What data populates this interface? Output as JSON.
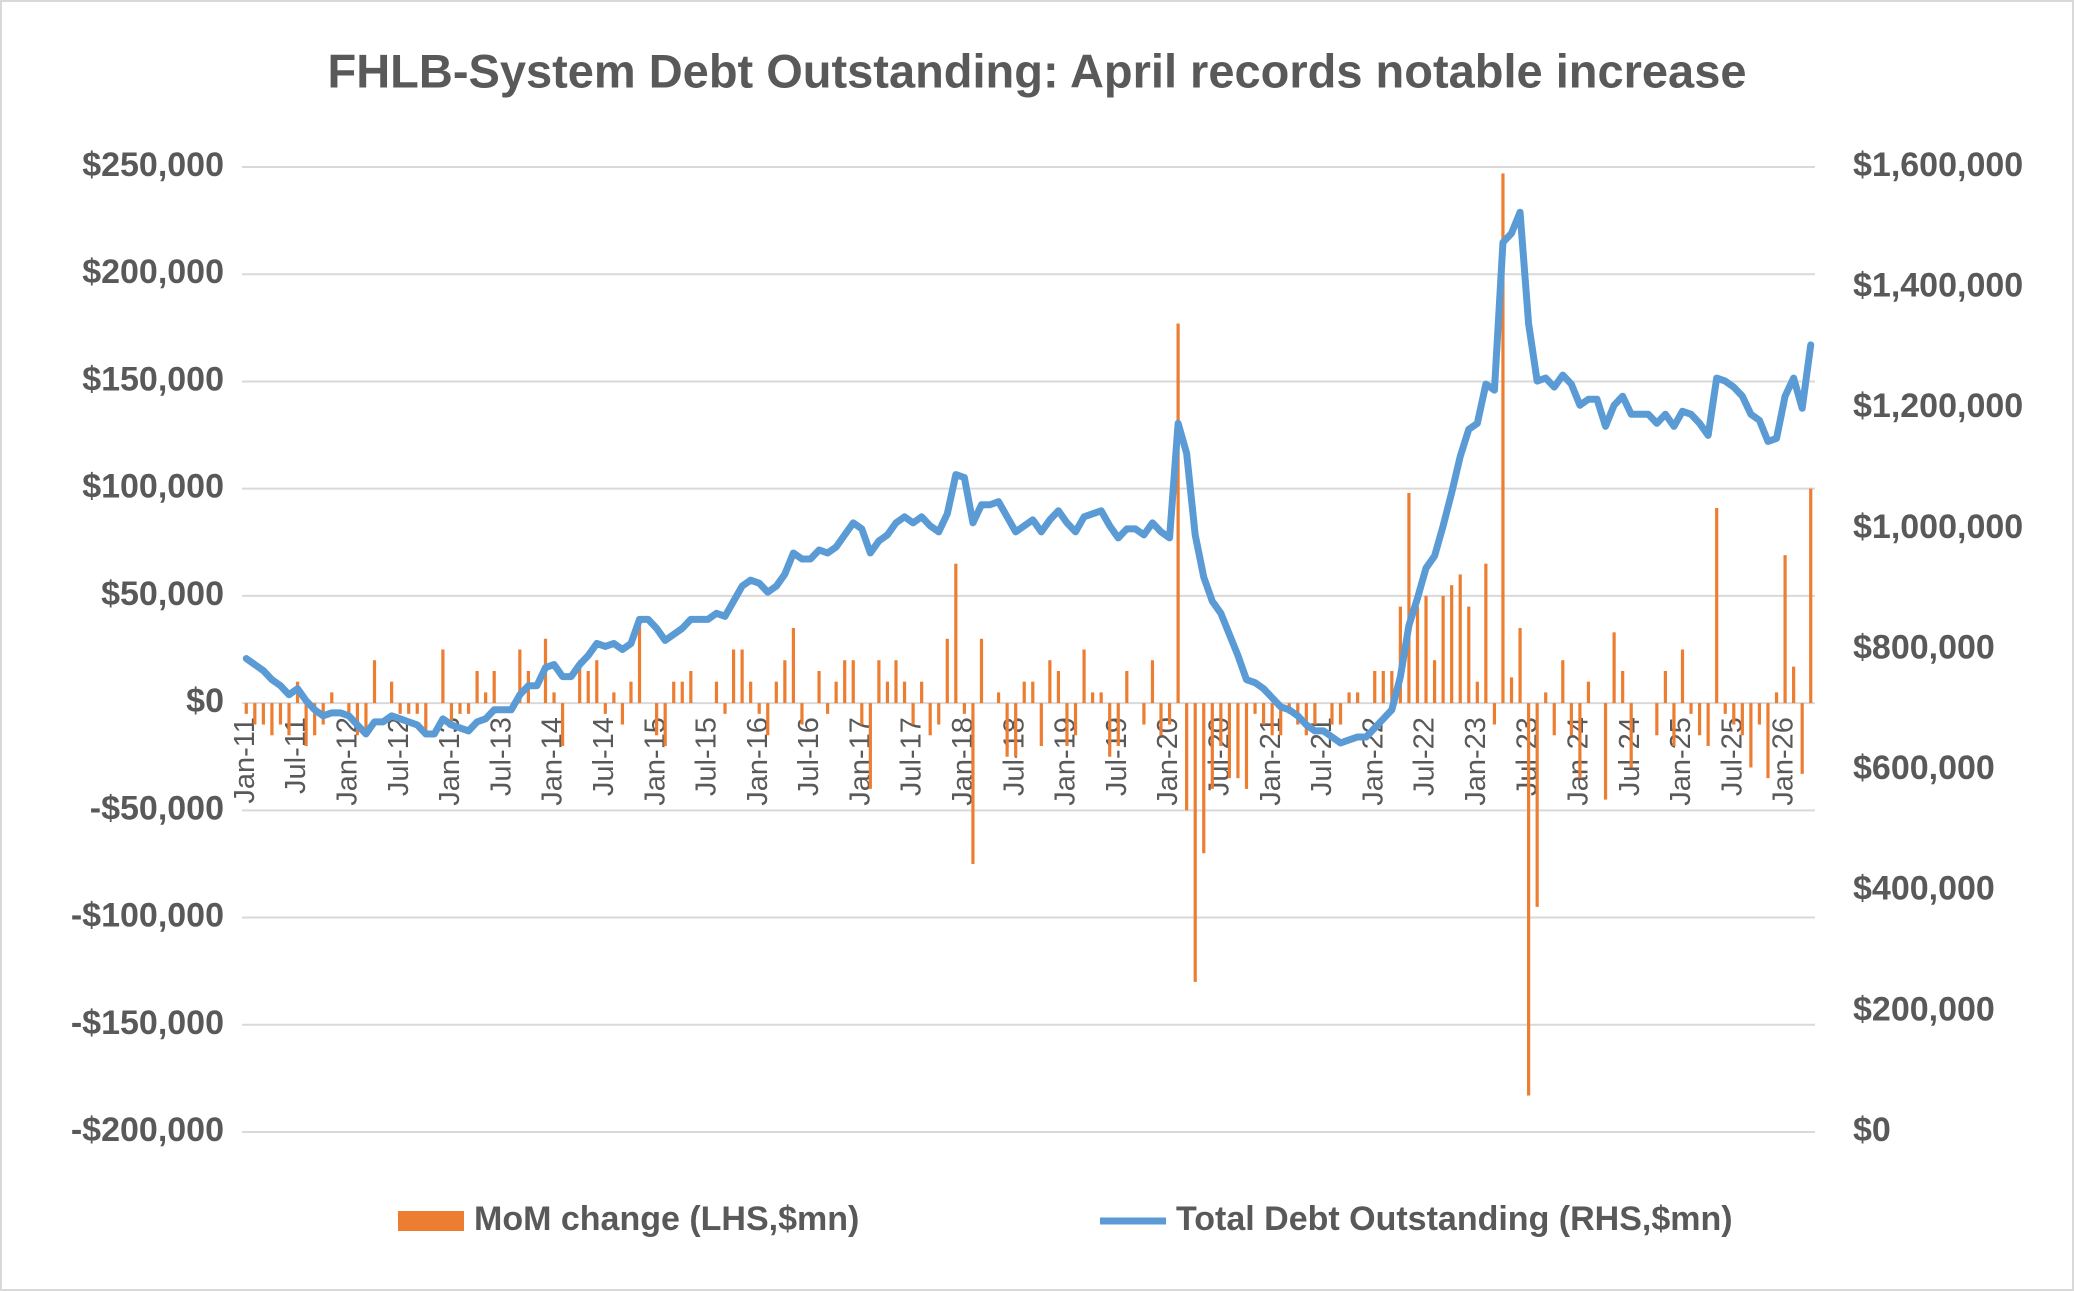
{
  "chart_data": {
    "type": "combo",
    "title": "FHLB-System Debt Outstanding: April records notable increase",
    "categories": [
      "Jan-11",
      null,
      null,
      null,
      null,
      null,
      "Jul-11",
      null,
      null,
      null,
      null,
      null,
      "Jan-12",
      null,
      null,
      null,
      null,
      null,
      "Jul-12",
      null,
      null,
      null,
      null,
      null,
      "Jan-13",
      null,
      null,
      null,
      null,
      null,
      "Jul-13",
      null,
      null,
      null,
      null,
      null,
      "Jan-14",
      null,
      null,
      null,
      null,
      null,
      "Jul-14",
      null,
      null,
      null,
      null,
      null,
      "Jan-15",
      null,
      null,
      null,
      null,
      null,
      "Jul-15",
      null,
      null,
      null,
      null,
      null,
      "Jan-16",
      null,
      null,
      null,
      null,
      null,
      "Jul-16",
      null,
      null,
      null,
      null,
      null,
      "Jan-17",
      null,
      null,
      null,
      null,
      null,
      "Jul-17",
      null,
      null,
      null,
      null,
      null,
      "Jan-18",
      null,
      null,
      null,
      null,
      null,
      "Jul-18",
      null,
      null,
      null,
      null,
      null,
      "Jan-19",
      null,
      null,
      null,
      null,
      null,
      "Jul-19",
      null,
      null,
      null,
      null,
      null,
      "Jan-20",
      null,
      null,
      null,
      null,
      null,
      "Jul-20",
      null,
      null,
      null,
      null,
      null,
      "Jan-21",
      null,
      null,
      null,
      null,
      null,
      "Jul-21",
      null,
      null,
      null,
      null,
      null,
      "Jan-22",
      null,
      null,
      null,
      null,
      null,
      "Jul-22",
      null,
      null,
      null,
      null,
      null,
      "Jan-23",
      null,
      null,
      null,
      null,
      null,
      "Jul-23",
      null,
      null,
      null,
      null,
      null,
      "Jan-24",
      null,
      null,
      null,
      null,
      null,
      "Jul-24",
      null,
      null,
      null,
      null,
      null,
      "Jan-25",
      null,
      null,
      null,
      null,
      null,
      "Jul-25",
      null,
      null,
      null,
      null,
      null,
      "Jan-26",
      null,
      null,
      null
    ],
    "series": [
      {
        "name": "MoM change (LHS,$mn)",
        "type": "bar",
        "axis": "y",
        "color": "#ed7d31",
        "values": [
          -5000,
          -10000,
          -10000,
          -15000,
          -10000,
          -15000,
          10000,
          -20000,
          -15000,
          -10000,
          5000,
          0,
          -5000,
          -15000,
          -15000,
          20000,
          0,
          10000,
          -5000,
          -5000,
          -5000,
          -15000,
          0,
          25000,
          -10000,
          -5000,
          -5000,
          15000,
          5000,
          15000,
          0,
          0,
          25000,
          15000,
          0,
          30000,
          5000,
          -20000,
          0,
          20000,
          15000,
          20000,
          -5000,
          5000,
          -10000,
          10000,
          40000,
          0,
          -15000,
          -20000,
          10000,
          10000,
          15000,
          0,
          0,
          10000,
          -5000,
          25000,
          25000,
          10000,
          -5000,
          -15000,
          10000,
          20000,
          35000,
          -10000,
          0,
          15000,
          -5000,
          10000,
          20000,
          20000,
          -10000,
          -40000,
          20000,
          10000,
          20000,
          10000,
          -10000,
          10000,
          -15000,
          -10000,
          30000,
          65000,
          -5000,
          -75000,
          30000,
          0,
          5000,
          -25000,
          -25000,
          10000,
          10000,
          -20000,
          20000,
          15000,
          -20000,
          -15000,
          25000,
          5000,
          5000,
          -25000,
          -20000,
          15000,
          0,
          -10000,
          20000,
          -15000,
          -10000,
          177000,
          -50000,
          -130000,
          -70000,
          -40000,
          -20000,
          -35000,
          -35000,
          -40000,
          -5000,
          -10000,
          -15000,
          -15000,
          -5000,
          -10000,
          -15000,
          -10000,
          0,
          -10000,
          -10000,
          5000,
          5000,
          0,
          15000,
          15000,
          15000,
          45000,
          98000,
          45000,
          50000,
          20000,
          50000,
          55000,
          60000,
          45000,
          10000,
          65000,
          -10000,
          247000,
          12000,
          35000,
          -183000,
          -95000,
          5000,
          -15000,
          20000,
          -15000,
          -35000,
          10000,
          0,
          -45000,
          33000,
          15000,
          -30000,
          0,
          0,
          -15000,
          15000,
          -20000,
          25000,
          -5000,
          -15000,
          -20000,
          91000,
          -5000,
          -10000,
          -15000,
          -30000,
          -10000,
          -35000,
          5000,
          69000,
          17000,
          -33000,
          100000
        ]
      },
      {
        "name": "Total Debt Outstanding (RHS,$mn)",
        "type": "line",
        "axis": "y2",
        "color": "#5b9bd5",
        "values": [
          785000,
          775000,
          765000,
          750000,
          740000,
          725000,
          735000,
          715000,
          700000,
          690000,
          695000,
          695000,
          690000,
          675000,
          660000,
          680000,
          680000,
          690000,
          685000,
          680000,
          675000,
          660000,
          660000,
          685000,
          675000,
          670000,
          665000,
          680000,
          685000,
          700000,
          700000,
          700000,
          725000,
          740000,
          740000,
          770000,
          775000,
          755000,
          755000,
          775000,
          790000,
          810000,
          805000,
          810000,
          800000,
          810000,
          850000,
          850000,
          835000,
          815000,
          825000,
          835000,
          850000,
          850000,
          850000,
          860000,
          855000,
          880000,
          905000,
          915000,
          910000,
          895000,
          905000,
          925000,
          960000,
          950000,
          950000,
          965000,
          960000,
          970000,
          990000,
          1010000,
          1000000,
          960000,
          980000,
          990000,
          1010000,
          1020000,
          1010000,
          1020000,
          1005000,
          995000,
          1025000,
          1090000,
          1085000,
          1010000,
          1040000,
          1040000,
          1045000,
          1020000,
          995000,
          1005000,
          1015000,
          995000,
          1015000,
          1030000,
          1010000,
          995000,
          1020000,
          1025000,
          1030000,
          1005000,
          985000,
          1000000,
          1000000,
          990000,
          1010000,
          995000,
          985000,
          1175000,
          1125000,
          990000,
          920000,
          880000,
          860000,
          825000,
          790000,
          750000,
          745000,
          735000,
          720000,
          705000,
          700000,
          690000,
          675000,
          665000,
          665000,
          655000,
          645000,
          650000,
          655000,
          655000,
          670000,
          685000,
          700000,
          755000,
          840000,
          885000,
          935000,
          955000,
          1005000,
          1060000,
          1120000,
          1165000,
          1175000,
          1240000,
          1230000,
          1475000,
          1490000,
          1525000,
          1340000,
          1245000,
          1250000,
          1235000,
          1255000,
          1240000,
          1205000,
          1215000,
          1215000,
          1170000,
          1205000,
          1220000,
          1190000,
          1190000,
          1190000,
          1175000,
          1190000,
          1170000,
          1195000,
          1190000,
          1175000,
          1155000,
          1250000,
          1245000,
          1235000,
          1220000,
          1190000,
          1180000,
          1145000,
          1150000,
          1220000,
          1250000,
          1200000,
          1305000
        ]
      }
    ],
    "ylim": [
      -200000,
      250000
    ],
    "yticks": [
      {
        "value": -200000,
        "label": "-$200,000"
      },
      {
        "value": -150000,
        "label": "-$150,000"
      },
      {
        "value": -100000,
        "label": "-$100,000"
      },
      {
        "value": -50000,
        "label": "-$50,000"
      },
      {
        "value": 0,
        "label": "$0"
      },
      {
        "value": 50000,
        "label": "$50,000"
      },
      {
        "value": 100000,
        "label": "$100,000"
      },
      {
        "value": 150000,
        "label": "$150,000"
      },
      {
        "value": 200000,
        "label": "$200,000"
      },
      {
        "value": 250000,
        "label": "$250,000"
      }
    ],
    "y2lim": [
      0,
      1600000
    ],
    "y2ticks": [
      {
        "value": 0,
        "label": "$0"
      },
      {
        "value": 200000,
        "label": "$200,000"
      },
      {
        "value": 400000,
        "label": "$400,000"
      },
      {
        "value": 600000,
        "label": "$600,000"
      },
      {
        "value": 800000,
        "label": "$800,000"
      },
      {
        "value": 1000000,
        "label": "$1,000,000"
      },
      {
        "value": 1200000,
        "label": "$1,200,000"
      },
      {
        "value": 1400000,
        "label": "$1,400,000"
      },
      {
        "value": 1600000,
        "label": "$1,600,000"
      }
    ],
    "grid": true,
    "legend": "bottom"
  }
}
